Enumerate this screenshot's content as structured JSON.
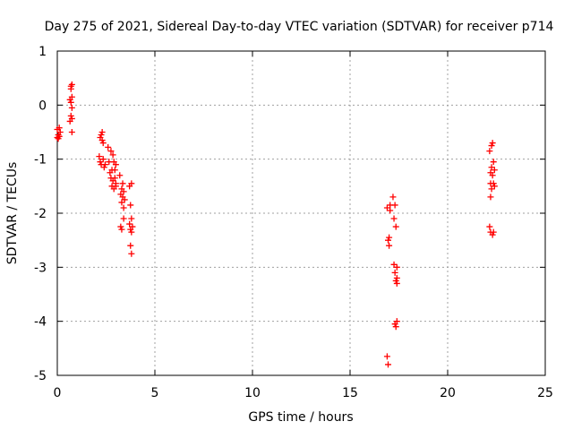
{
  "chart_data": {
    "type": "scatter",
    "title": "Day 275 of 2021, Sidereal Day-to-day VTEC variation (SDTVAR) for receiver p714",
    "xlabel": "GPS time / hours",
    "ylabel": "SDTVAR / TECUs",
    "xlim": [
      0,
      25
    ],
    "ylim": [
      -5,
      1
    ],
    "xticks": [
      0,
      5,
      10,
      15,
      20,
      25
    ],
    "yticks": [
      1,
      0,
      -1,
      -2,
      -3,
      -4,
      -5
    ],
    "grid": true,
    "marker": "+",
    "color": "#ff0000",
    "series": [
      {
        "name": "SDTVAR",
        "x": [
          0.0,
          0.0,
          0.05,
          0.05,
          0.1,
          0.1,
          0.15,
          0.65,
          0.65,
          0.7,
          0.7,
          0.7,
          0.7,
          0.75,
          0.75,
          0.75,
          0.75,
          0.75,
          2.15,
          2.2,
          2.2,
          2.25,
          2.25,
          2.3,
          2.3,
          2.35,
          2.35,
          2.4,
          2.45,
          2.6,
          2.65,
          2.7,
          2.75,
          2.75,
          2.8,
          2.8,
          2.85,
          2.85,
          2.9,
          2.9,
          2.95,
          2.95,
          3.0,
          3.0,
          3.0,
          3.2,
          3.25,
          3.25,
          3.3,
          3.3,
          3.3,
          3.35,
          3.35,
          3.4,
          3.4,
          3.4,
          3.45,
          3.7,
          3.7,
          3.75,
          3.75,
          3.75,
          3.8,
          3.8,
          3.8,
          3.8,
          3.85,
          16.9,
          16.9,
          16.95,
          16.95,
          17.0,
          17.0,
          17.05,
          17.05,
          17.2,
          17.25,
          17.25,
          17.3,
          17.3,
          17.3,
          17.35,
          17.35,
          17.35,
          17.4,
          17.4,
          17.4,
          17.4,
          22.15,
          22.15,
          22.2,
          22.2,
          22.2,
          22.2,
          22.25,
          22.25,
          22.25,
          22.3,
          22.3,
          22.3,
          22.35,
          22.35,
          22.35,
          22.4,
          22.4
        ],
        "y": [
          -0.45,
          -0.6,
          -0.55,
          -0.62,
          -0.42,
          -0.58,
          -0.5,
          -0.3,
          0.1,
          0.3,
          -0.2,
          0.05,
          0.35,
          -0.5,
          -0.25,
          0.15,
          0.38,
          -0.05,
          -0.95,
          -1.05,
          -0.6,
          -0.55,
          -1.1,
          -0.5,
          -0.65,
          -0.7,
          -1.0,
          -1.15,
          -1.1,
          -0.78,
          -1.05,
          -1.25,
          -0.85,
          -1.35,
          -1.2,
          -1.5,
          -0.92,
          -1.4,
          -1.05,
          -1.55,
          -1.2,
          -1.35,
          -1.1,
          -1.45,
          -1.5,
          -1.3,
          -1.65,
          -2.25,
          -1.55,
          -1.8,
          -2.3,
          -1.45,
          -1.7,
          -2.1,
          -1.6,
          -1.9,
          -1.75,
          -1.5,
          -2.2,
          -1.85,
          -2.3,
          -2.6,
          -1.45,
          -2.1,
          -2.35,
          -2.75,
          -2.25,
          -4.65,
          -1.9,
          -4.8,
          -2.5,
          -2.45,
          -2.6,
          -1.85,
          -1.95,
          -1.7,
          -2.1,
          -2.95,
          -1.85,
          -3.1,
          -4.05,
          -2.25,
          -3.25,
          -4.1,
          -3.0,
          -3.2,
          -3.3,
          -4.0,
          -0.85,
          -2.25,
          -1.25,
          -1.45,
          -1.7,
          -2.35,
          -0.75,
          -1.15,
          -1.55,
          -0.7,
          -1.3,
          -2.4,
          -1.05,
          -1.45,
          -2.35,
          -1.2,
          -1.5
        ]
      }
    ]
  }
}
